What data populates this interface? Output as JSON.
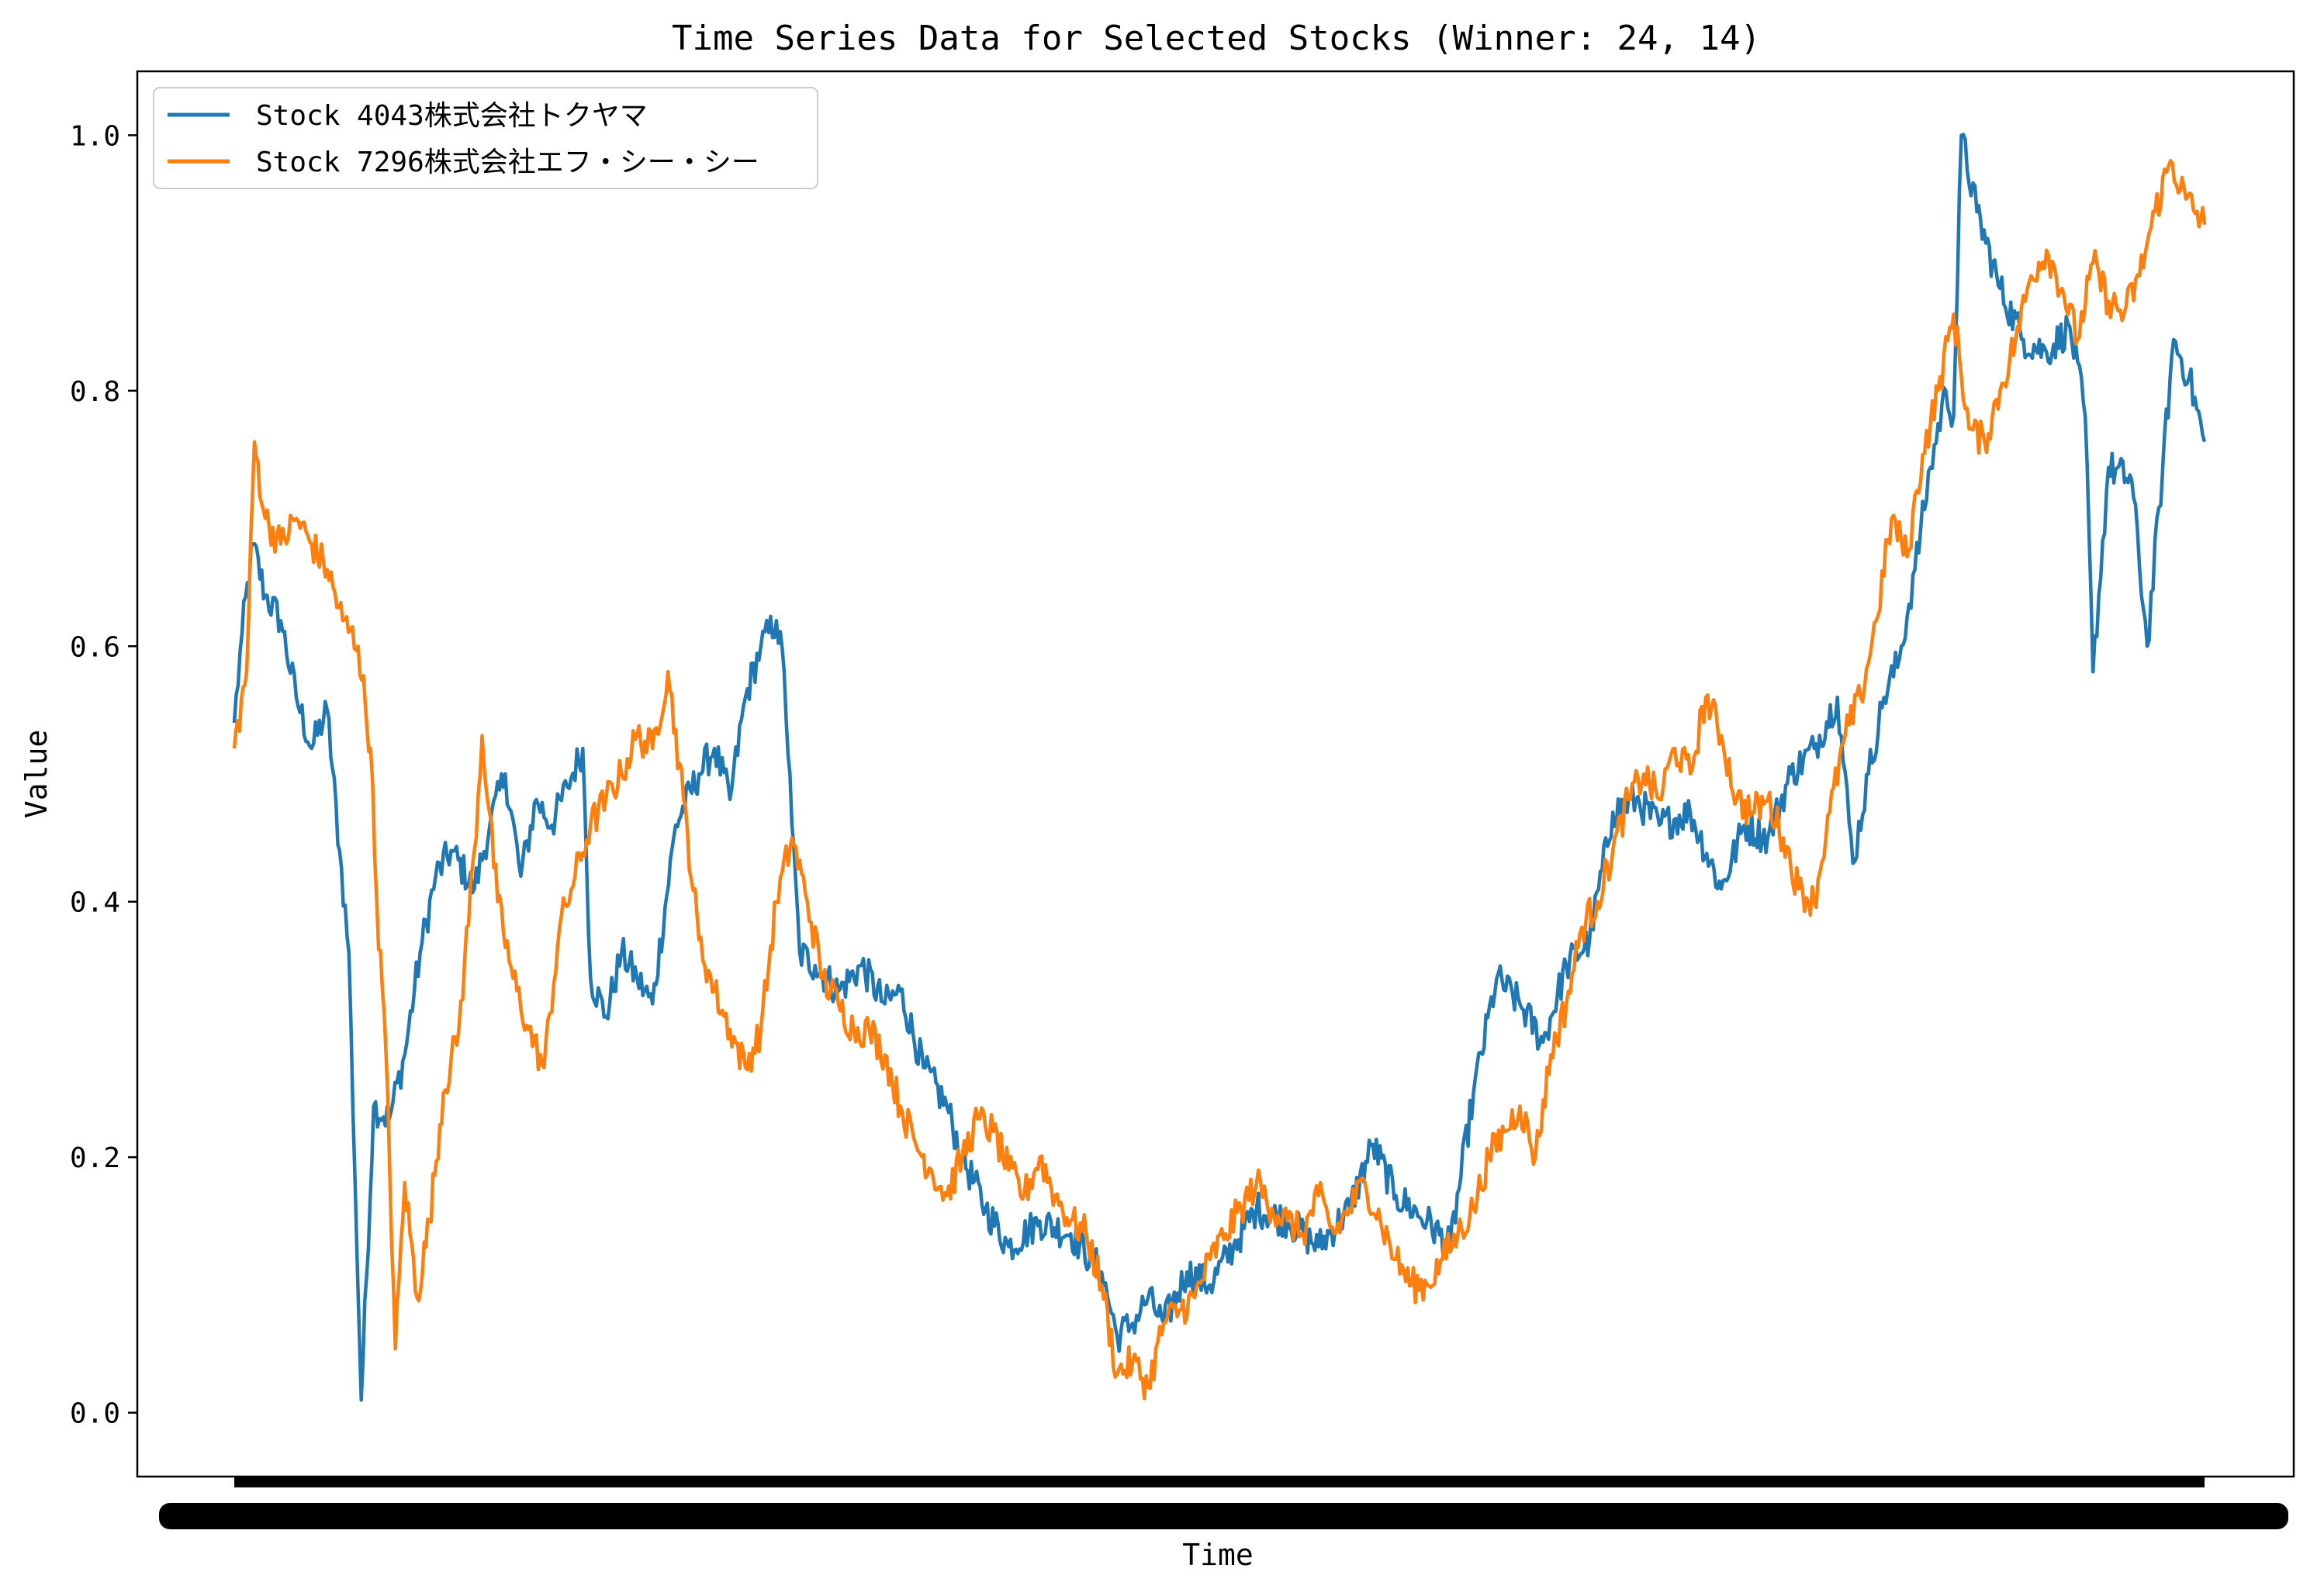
{
  "chart_data": {
    "type": "line",
    "title": "Time Series Data for Selected Stocks (Winner: 24, 14)",
    "xlabel": "Time",
    "ylabel": "Value",
    "ylim": [
      -0.05,
      1.05
    ],
    "yticks": [
      "0.0",
      "0.2",
      "0.4",
      "0.6",
      "0.8",
      "1.0"
    ],
    "x_tick_labels_note": "x tick labels are overlapping and illegible",
    "grid": false,
    "legend_position": "top-left",
    "n_points": 1000,
    "series": [
      {
        "name": "Stock 4043株式会社トクヤマ",
        "color": "#1f77b4",
        "keypoints": [
          [
            0,
            0.54
          ],
          [
            5,
            0.61
          ],
          [
            12,
            0.68
          ],
          [
            20,
            0.64
          ],
          [
            30,
            0.62
          ],
          [
            40,
            0.56
          ],
          [
            50,
            0.52
          ],
          [
            60,
            0.55
          ],
          [
            68,
            0.44
          ],
          [
            74,
            0.36
          ],
          [
            78,
            0.18
          ],
          [
            82,
            0.01
          ],
          [
            90,
            0.24
          ],
          [
            100,
            0.23
          ],
          [
            110,
            0.28
          ],
          [
            120,
            0.36
          ],
          [
            130,
            0.42
          ],
          [
            140,
            0.44
          ],
          [
            155,
            0.41
          ],
          [
            165,
            0.46
          ],
          [
            175,
            0.5
          ],
          [
            185,
            0.42
          ],
          [
            195,
            0.48
          ],
          [
            205,
            0.46
          ],
          [
            215,
            0.49
          ],
          [
            225,
            0.52
          ],
          [
            230,
            0.34
          ],
          [
            240,
            0.31
          ],
          [
            250,
            0.36
          ],
          [
            260,
            0.34
          ],
          [
            270,
            0.32
          ],
          [
            285,
            0.46
          ],
          [
            300,
            0.5
          ],
          [
            310,
            0.52
          ],
          [
            320,
            0.48
          ],
          [
            330,
            0.56
          ],
          [
            340,
            0.6
          ],
          [
            350,
            0.62
          ],
          [
            355,
            0.58
          ],
          [
            360,
            0.46
          ],
          [
            365,
            0.36
          ],
          [
            375,
            0.35
          ],
          [
            390,
            0.33
          ],
          [
            405,
            0.35
          ],
          [
            420,
            0.32
          ],
          [
            430,
            0.33
          ],
          [
            445,
            0.27
          ],
          [
            460,
            0.24
          ],
          [
            470,
            0.2
          ],
          [
            485,
            0.16
          ],
          [
            500,
            0.13
          ],
          [
            520,
            0.15
          ],
          [
            540,
            0.14
          ],
          [
            560,
            0.11
          ],
          [
            570,
            0.06
          ],
          [
            580,
            0.07
          ],
          [
            590,
            0.09
          ],
          [
            600,
            0.07
          ],
          [
            615,
            0.11
          ],
          [
            630,
            0.1
          ],
          [
            645,
            0.13
          ],
          [
            660,
            0.16
          ],
          [
            680,
            0.15
          ],
          [
            700,
            0.13
          ],
          [
            720,
            0.16
          ],
          [
            735,
            0.21
          ],
          [
            750,
            0.17
          ],
          [
            770,
            0.15
          ],
          [
            785,
            0.13
          ],
          [
            800,
            0.25
          ],
          [
            815,
            0.34
          ],
          [
            830,
            0.32
          ],
          [
            845,
            0.29
          ],
          [
            860,
            0.35
          ],
          [
            875,
            0.37
          ],
          [
            890,
            0.47
          ],
          [
            905,
            0.48
          ],
          [
            920,
            0.46
          ],
          [
            940,
            0.47
          ],
          [
            960,
            0.41
          ],
          [
            975,
            0.46
          ],
          [
            990,
            0.45
          ],
          [
            1005,
            0.5
          ],
          [
            1020,
            0.52
          ],
          [
            1035,
            0.56
          ],
          [
            1045,
            0.43
          ],
          [
            1055,
            0.5
          ],
          [
            1065,
            0.56
          ],
          [
            1075,
            0.59
          ],
          [
            1085,
            0.66
          ],
          [
            1095,
            0.74
          ],
          [
            1105,
            0.8
          ],
          [
            1110,
            0.78
          ],
          [
            1115,
            1.0
          ],
          [
            1125,
            0.94
          ],
          [
            1140,
            0.88
          ],
          [
            1155,
            0.84
          ],
          [
            1170,
            0.83
          ],
          [
            1185,
            0.85
          ],
          [
            1195,
            0.78
          ],
          [
            1200,
            0.58
          ],
          [
            1210,
            0.74
          ],
          [
            1225,
            0.73
          ],
          [
            1235,
            0.6
          ],
          [
            1245,
            0.74
          ],
          [
            1252,
            0.84
          ],
          [
            1262,
            0.81
          ],
          [
            1272,
            0.76
          ]
        ]
      },
      {
        "name": "Stock 7296株式会社エフ・シー・シー",
        "color": "#ff7f0e",
        "keypoints": [
          [
            0,
            0.52
          ],
          [
            8,
            0.58
          ],
          [
            13,
            0.76
          ],
          [
            20,
            0.7
          ],
          [
            30,
            0.68
          ],
          [
            40,
            0.7
          ],
          [
            50,
            0.68
          ],
          [
            60,
            0.66
          ],
          [
            70,
            0.62
          ],
          [
            80,
            0.6
          ],
          [
            88,
            0.52
          ],
          [
            92,
            0.4
          ],
          [
            98,
            0.28
          ],
          [
            104,
            0.05
          ],
          [
            110,
            0.18
          ],
          [
            118,
            0.09
          ],
          [
            126,
            0.15
          ],
          [
            135,
            0.25
          ],
          [
            145,
            0.3
          ],
          [
            155,
            0.44
          ],
          [
            160,
            0.53
          ],
          [
            170,
            0.4
          ],
          [
            180,
            0.34
          ],
          [
            190,
            0.3
          ],
          [
            200,
            0.27
          ],
          [
            210,
            0.38
          ],
          [
            220,
            0.42
          ],
          [
            230,
            0.46
          ],
          [
            240,
            0.48
          ],
          [
            250,
            0.5
          ],
          [
            260,
            0.53
          ],
          [
            270,
            0.52
          ],
          [
            280,
            0.58
          ],
          [
            290,
            0.48
          ],
          [
            300,
            0.37
          ],
          [
            310,
            0.33
          ],
          [
            320,
            0.3
          ],
          [
            330,
            0.27
          ],
          [
            340,
            0.3
          ],
          [
            350,
            0.4
          ],
          [
            360,
            0.45
          ],
          [
            370,
            0.4
          ],
          [
            380,
            0.34
          ],
          [
            390,
            0.32
          ],
          [
            400,
            0.3
          ],
          [
            410,
            0.3
          ],
          [
            420,
            0.28
          ],
          [
            430,
            0.24
          ],
          [
            440,
            0.21
          ],
          [
            450,
            0.19
          ],
          [
            460,
            0.17
          ],
          [
            470,
            0.2
          ],
          [
            480,
            0.23
          ],
          [
            490,
            0.22
          ],
          [
            500,
            0.19
          ],
          [
            510,
            0.17
          ],
          [
            520,
            0.2
          ],
          [
            530,
            0.17
          ],
          [
            540,
            0.15
          ],
          [
            550,
            0.14
          ],
          [
            560,
            0.1
          ],
          [
            570,
            0.03
          ],
          [
            580,
            0.04
          ],
          [
            590,
            0.02
          ],
          [
            600,
            0.07
          ],
          [
            610,
            0.08
          ],
          [
            620,
            0.09
          ],
          [
            630,
            0.12
          ],
          [
            640,
            0.14
          ],
          [
            650,
            0.16
          ],
          [
            660,
            0.18
          ],
          [
            670,
            0.16
          ],
          [
            680,
            0.15
          ],
          [
            690,
            0.14
          ],
          [
            700,
            0.17
          ],
          [
            710,
            0.14
          ],
          [
            720,
            0.16
          ],
          [
            730,
            0.18
          ],
          [
            740,
            0.15
          ],
          [
            750,
            0.12
          ],
          [
            760,
            0.1
          ],
          [
            770,
            0.1
          ],
          [
            780,
            0.12
          ],
          [
            790,
            0.14
          ],
          [
            800,
            0.16
          ],
          [
            810,
            0.2
          ],
          [
            820,
            0.22
          ],
          [
            830,
            0.24
          ],
          [
            840,
            0.2
          ],
          [
            850,
            0.28
          ],
          [
            860,
            0.32
          ],
          [
            870,
            0.38
          ],
          [
            880,
            0.4
          ],
          [
            890,
            0.44
          ],
          [
            900,
            0.48
          ],
          [
            910,
            0.5
          ],
          [
            920,
            0.48
          ],
          [
            930,
            0.52
          ],
          [
            940,
            0.5
          ],
          [
            950,
            0.56
          ],
          [
            960,
            0.53
          ],
          [
            970,
            0.48
          ],
          [
            980,
            0.47
          ],
          [
            990,
            0.48
          ],
          [
            1000,
            0.45
          ],
          [
            1010,
            0.41
          ],
          [
            1020,
            0.4
          ],
          [
            1030,
            0.47
          ],
          [
            1040,
            0.53
          ],
          [
            1050,
            0.56
          ],
          [
            1060,
            0.62
          ],
          [
            1070,
            0.7
          ],
          [
            1080,
            0.67
          ],
          [
            1090,
            0.75
          ],
          [
            1100,
            0.8
          ],
          [
            1110,
            0.86
          ],
          [
            1120,
            0.77
          ],
          [
            1130,
            0.76
          ],
          [
            1140,
            0.8
          ],
          [
            1150,
            0.84
          ],
          [
            1160,
            0.89
          ],
          [
            1170,
            0.91
          ],
          [
            1180,
            0.88
          ],
          [
            1190,
            0.84
          ],
          [
            1200,
            0.9
          ],
          [
            1210,
            0.87
          ],
          [
            1220,
            0.86
          ],
          [
            1230,
            0.89
          ],
          [
            1240,
            0.94
          ],
          [
            1250,
            0.98
          ],
          [
            1260,
            0.95
          ],
          [
            1272,
            0.93
          ]
        ]
      }
    ]
  }
}
